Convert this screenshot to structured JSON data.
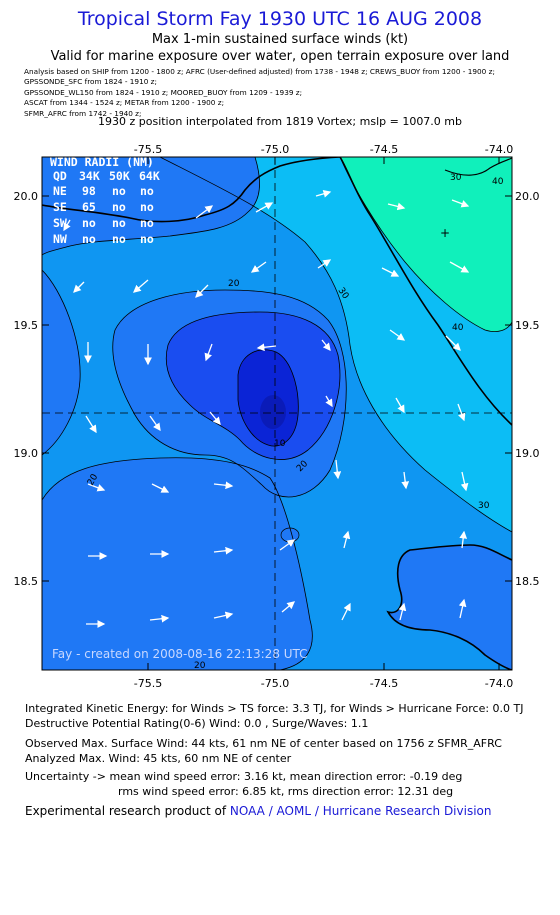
{
  "header": {
    "title": "Tropical Storm Fay 1930 UTC 16 AUG 2008",
    "subtitle1": "Max 1-min sustained surface winds (kt)",
    "subtitle2": "Valid for marine exposure over water, open terrain exposure over land",
    "sources": [
      "Analysis based on  SHIP from 1200 - 1800 z;  AFRC (User-defined adjusted) from 1738 - 1948 z;  CREWS_BUOY from 1200 - 1900 z;",
      "GPSSONDE_SFC from 1824 - 1910 z;",
      "GPSSONDE_WL150 from 1824 - 1910 z;  MOORED_BUOY from 1209 - 1939 z;",
      "ASCAT from 1344 - 1524 z;  METAR from 1200 - 1900 z;",
      "SFMR_AFRC from 1742 - 1940 z;"
    ],
    "position_line": "1930 z position interpolated from 1819 Vortex; mslp = 1007.0 mb"
  },
  "map": {
    "lon_range": [
      -75.95,
      -73.98
    ],
    "lat_range": [
      18.13,
      20.19
    ],
    "center": {
      "lon": -74.96,
      "lat": 19.15
    },
    "x_ticks": [
      "-75.5",
      "-75.0",
      "-74.5",
      "-74.0"
    ],
    "y_ticks": [
      "20.0",
      "19.5",
      "19.0",
      "18.5"
    ],
    "contour_labels": [
      "30",
      "40",
      "20",
      "30",
      "40",
      "10",
      "20",
      "20",
      "30",
      "20"
    ],
    "credit": "Fay - created on 2008-08-16 22:13:28 UTC",
    "colors": {
      "band_10_20": "#1f78f5",
      "band_20_30": "#0f96f2",
      "band_30_40": "#0cbdf5",
      "band_40_plus": "#10f0bb",
      "band_0_10": "#1a4df0",
      "core": "#0b24d6"
    },
    "radii_table": {
      "title": "WIND RADII (NM)",
      "header": [
        "QD",
        "34K",
        "50K",
        "64K"
      ],
      "rows": [
        [
          "NE",
          "98",
          "no",
          "no"
        ],
        [
          "SE",
          "65",
          "no",
          "no"
        ],
        [
          "SW",
          "no",
          "no",
          "no"
        ],
        [
          "NW",
          "no",
          "no",
          "no"
        ]
      ]
    }
  },
  "stats": {
    "ike": "Integrated Kinetic Energy:  for Winds > TS force: 3.3 TJ,  for Winds > Hurricane Force: 0.0 TJ",
    "dpr": "Destructive Potential Rating(0-6)   Wind: 0.0 , Surge/Waves: 1.1",
    "obs_max": "Observed Max. Surface Wind: 44 kts, 61 nm NE of center based on 1756 z SFMR_AFRC",
    "analyzed_max": "Analyzed Max. Wind: 45 kts, 60 nm NE of center",
    "uncertainty1": "Uncertainty -> mean wind speed error: 3.16 kt,   mean direction error:  -0.19 deg",
    "uncertainty2": "rms wind speed error: 6.85 kt,   rms direction error: 12.31 deg"
  },
  "footer": {
    "prefix": "Experimental research product of ",
    "org": "NOAA / AOML / Hurricane Research Division"
  }
}
